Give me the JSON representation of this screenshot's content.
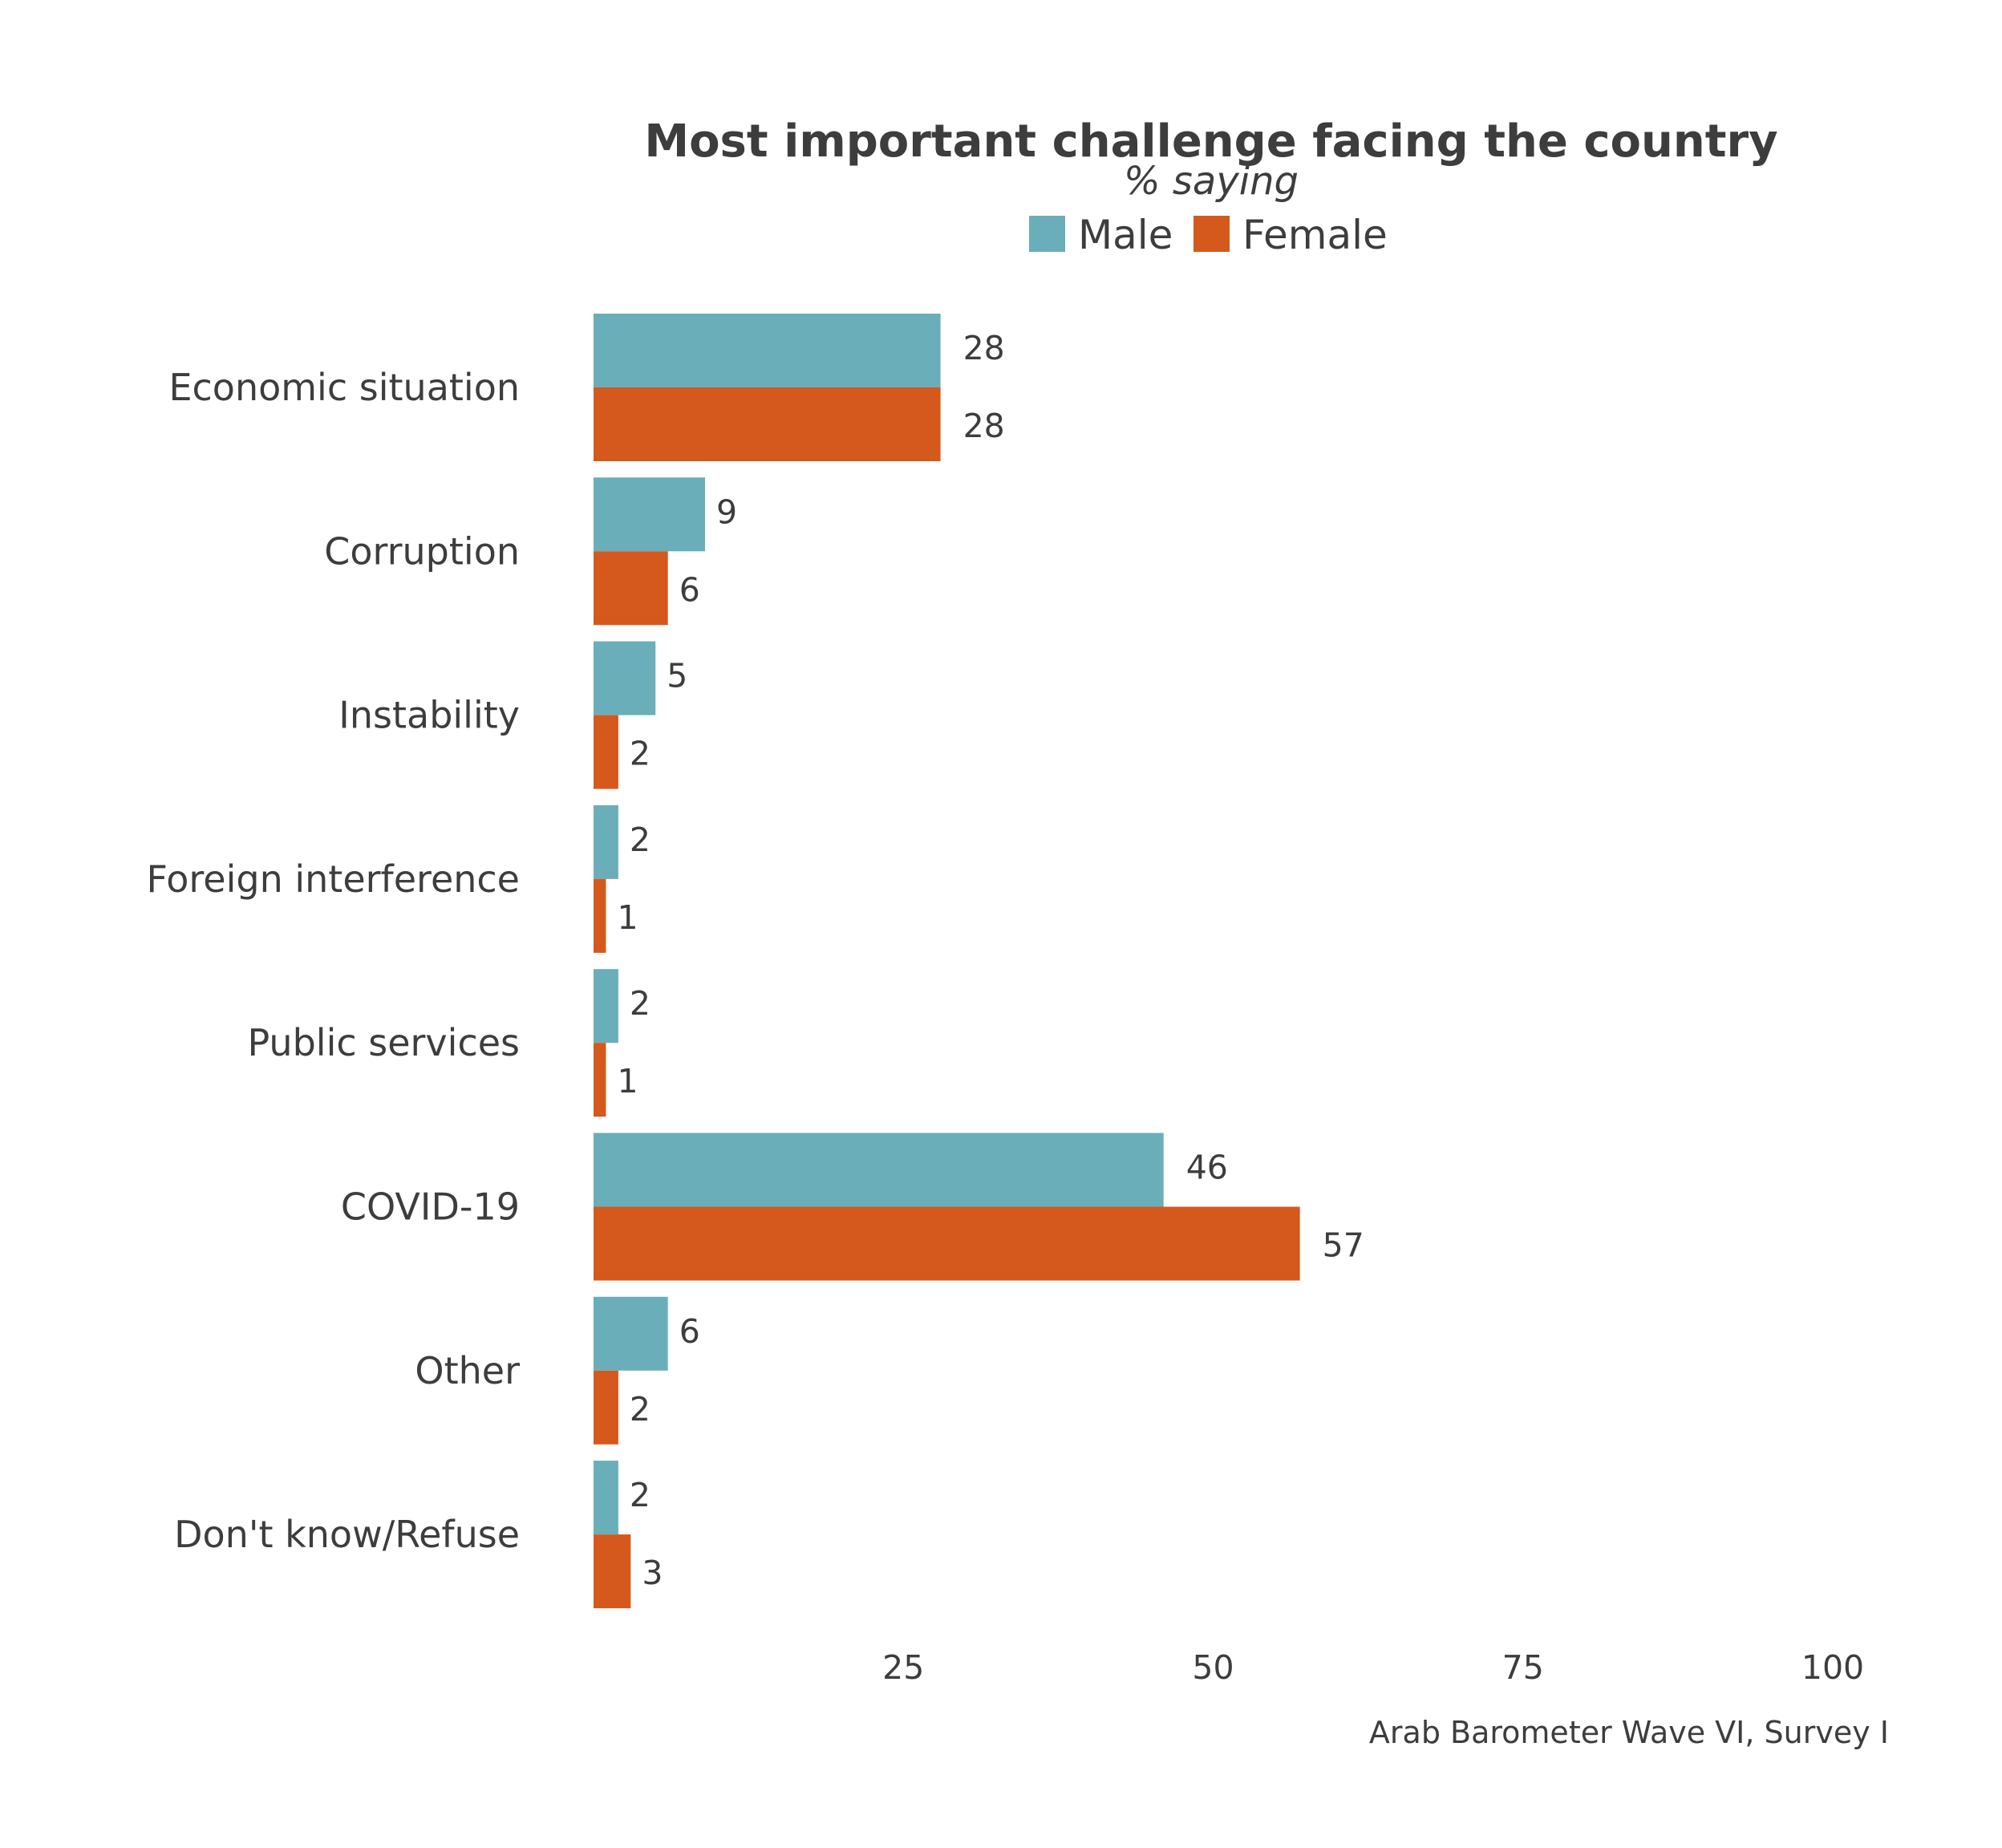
{
  "chart_data": {
    "type": "bar",
    "orientation": "horizontal",
    "title": "Most important challenge facing the country",
    "subtitle": "% saying",
    "caption": "Arab Barometer Wave VI, Survey I",
    "categories": [
      "Economic situation",
      "Corruption",
      "Instability",
      "Foreign interference",
      "Public services",
      "COVID-19",
      "Other",
      "Don't know/Refuse"
    ],
    "series": [
      {
        "name": "Male",
        "color": "#6aaeb9",
        "values": [
          28,
          9,
          5,
          2,
          2,
          46,
          6,
          2
        ]
      },
      {
        "name": "Female",
        "color": "#d5591c",
        "values": [
          28,
          6,
          2,
          1,
          1,
          57,
          2,
          3
        ]
      }
    ],
    "xlim": [
      0,
      100
    ],
    "xticks": [
      25,
      50,
      75,
      100
    ],
    "legend_position": "top",
    "grid": false
  }
}
